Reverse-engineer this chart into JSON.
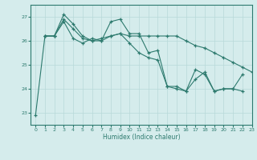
{
  "title": "",
  "xlabel": "Humidex (Indice chaleur)",
  "bg_color": "#d5ecec",
  "line_color": "#2d7a6e",
  "grid_color": "#b8d8d8",
  "xlim": [
    -0.5,
    23
  ],
  "ylim": [
    22.5,
    27.5
  ],
  "yticks": [
    23,
    24,
    25,
    26,
    27
  ],
  "xticks": [
    0,
    1,
    2,
    3,
    4,
    5,
    6,
    7,
    8,
    9,
    10,
    11,
    12,
    13,
    14,
    15,
    16,
    17,
    18,
    19,
    20,
    21,
    22,
    23
  ],
  "series": [
    [
      0,
      22.9
    ],
    [
      1,
      26.2
    ],
    [
      2,
      26.2
    ],
    [
      3,
      27.1
    ],
    [
      4,
      26.7
    ],
    [
      5,
      26.2
    ],
    [
      6,
      26.0
    ],
    [
      7,
      26.1
    ],
    [
      8,
      26.2
    ],
    [
      9,
      26.3
    ],
    [
      10,
      25.9
    ],
    [
      11,
      25.5
    ],
    [
      12,
      25.3
    ],
    [
      13,
      25.2
    ],
    [
      14,
      24.1
    ],
    [
      15,
      24.0
    ],
    [
      16,
      23.9
    ],
    [
      17,
      24.8
    ],
    [
      18,
      24.6
    ],
    [
      19,
      23.9
    ],
    [
      20,
      24.0
    ],
    [
      21,
      24.0
    ],
    [
      22,
      24.6
    ]
  ],
  "series2": [
    [
      1,
      26.2
    ],
    [
      2,
      26.2
    ],
    [
      3,
      26.9
    ],
    [
      4,
      26.5
    ],
    [
      5,
      26.1
    ],
    [
      6,
      26.0
    ],
    [
      7,
      26.0
    ],
    [
      8,
      26.2
    ],
    [
      9,
      26.3
    ],
    [
      10,
      26.2
    ],
    [
      11,
      26.2
    ],
    [
      12,
      26.2
    ],
    [
      13,
      26.2
    ],
    [
      14,
      26.2
    ],
    [
      15,
      26.2
    ],
    [
      16,
      26.0
    ],
    [
      17,
      25.8
    ],
    [
      18,
      25.7
    ],
    [
      19,
      25.5
    ],
    [
      20,
      25.3
    ],
    [
      21,
      25.1
    ],
    [
      22,
      24.9
    ],
    [
      23,
      24.7
    ]
  ],
  "series3": [
    [
      1,
      26.2
    ],
    [
      2,
      26.2
    ],
    [
      3,
      26.8
    ],
    [
      4,
      26.1
    ],
    [
      5,
      25.9
    ],
    [
      6,
      26.1
    ],
    [
      7,
      26.0
    ],
    [
      8,
      26.8
    ],
    [
      9,
      26.9
    ],
    [
      10,
      26.3
    ],
    [
      11,
      26.3
    ],
    [
      12,
      25.5
    ],
    [
      13,
      25.6
    ],
    [
      14,
      24.1
    ],
    [
      15,
      24.1
    ],
    [
      16,
      23.9
    ],
    [
      17,
      24.4
    ],
    [
      18,
      24.7
    ],
    [
      19,
      23.9
    ],
    [
      20,
      24.0
    ],
    [
      21,
      24.0
    ],
    [
      22,
      23.9
    ]
  ]
}
